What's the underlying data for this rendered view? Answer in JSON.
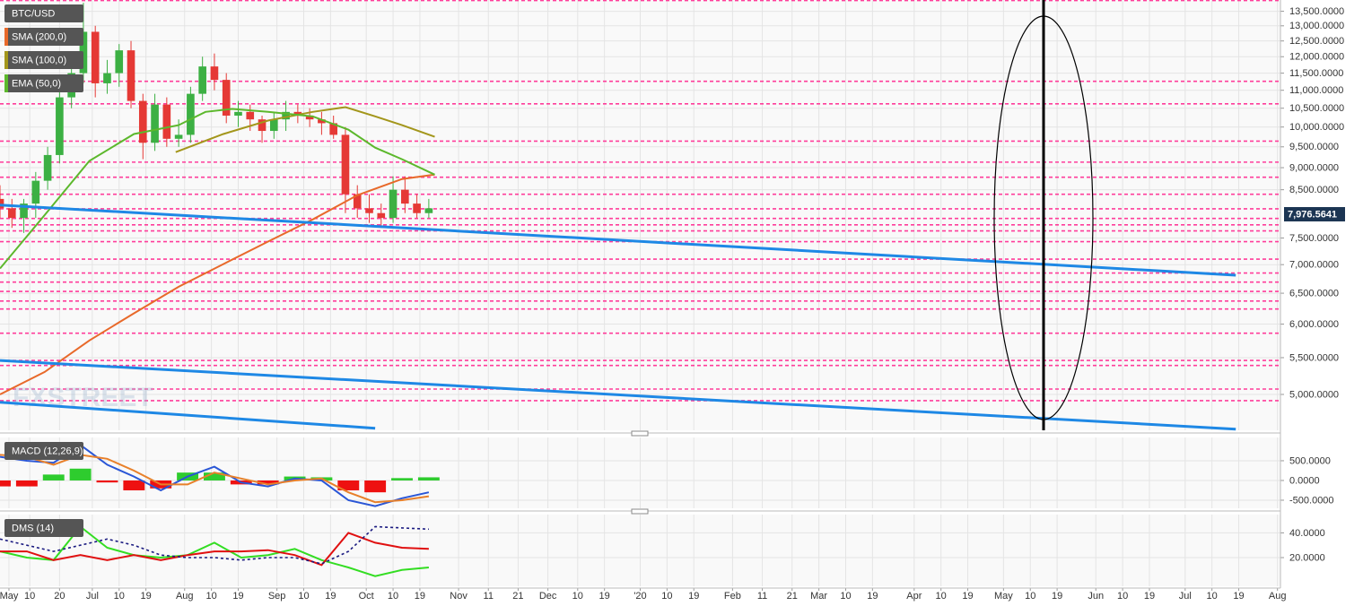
{
  "chart_data": [
    {
      "type": "candlestick",
      "title": "BTC/USD",
      "watermark": "FXSTREET",
      "log_scale": true,
      "grid": true,
      "up_color": "#3cb043",
      "down_color": "#e53935",
      "x": [
        150,
        154,
        158,
        162,
        166,
        170,
        174,
        178,
        182,
        186,
        190,
        194,
        198,
        202,
        206,
        210,
        214,
        218,
        222,
        226,
        230,
        234,
        238,
        242,
        246,
        250,
        254,
        258,
        262,
        266,
        270,
        274,
        278,
        282,
        286,
        290,
        294
      ],
      "open": [
        8300,
        8100,
        7900,
        8200,
        8700,
        9300,
        10800,
        11500,
        12800,
        11200,
        11500,
        12200,
        10700,
        9600,
        10600,
        9700,
        9800,
        10900,
        11700,
        11300,
        10300,
        10400,
        10200,
        9900,
        10200,
        10400,
        10300,
        10200,
        10100,
        9800,
        8400,
        8100,
        8000,
        7900,
        8500,
        8200,
        8000
      ],
      "high": [
        8600,
        8300,
        8300,
        8900,
        9500,
        11200,
        12000,
        13800,
        13000,
        11900,
        12400,
        12500,
        10900,
        10900,
        10800,
        10200,
        11100,
        12000,
        12100,
        11500,
        10700,
        10600,
        10300,
        10400,
        10700,
        10600,
        10500,
        10400,
        10300,
        10000,
        8600,
        8400,
        8200,
        8800,
        8800,
        8400,
        8300
      ],
      "low": [
        7900,
        7700,
        7600,
        7900,
        8500,
        9100,
        10500,
        11200,
        10800,
        10900,
        11100,
        10500,
        9200,
        9400,
        9500,
        9500,
        9600,
        10700,
        11000,
        10100,
        10000,
        9900,
        9600,
        9700,
        9900,
        10100,
        10000,
        9800,
        9700,
        8000,
        7900,
        7800,
        7700,
        7800,
        8000,
        7900,
        7900
      ],
      "close": [
        8100,
        7900,
        8200,
        8700,
        9300,
        10800,
        11500,
        12800,
        11200,
        11500,
        12200,
        10700,
        9600,
        10600,
        9700,
        9800,
        10900,
        11700,
        11300,
        10300,
        10400,
        10200,
        9900,
        10200,
        10400,
        10300,
        10200,
        10100,
        9800,
        8400,
        8100,
        8000,
        7900,
        8500,
        8200,
        8000,
        8100
      ],
      "series": [
        {
          "name": "SMA (200,0)",
          "color": "#e8692a",
          "x": [
            150,
            165,
            180,
            195,
            210,
            225,
            240,
            255,
            270,
            285,
            296
          ],
          "values": [
            5000,
            5300,
            5750,
            6170,
            6610,
            7010,
            7430,
            7870,
            8380,
            8740,
            8840
          ]
        },
        {
          "name": "SMA (100,0)",
          "color": "#a3961b",
          "x": [
            209,
            225,
            240,
            255,
            266,
            276,
            285,
            296
          ],
          "values": [
            9370,
            9820,
            10170,
            10400,
            10530,
            10280,
            10050,
            9750
          ]
        },
        {
          "name": "EMA (50,0)",
          "color": "#5cb82c",
          "x": [
            150,
            165,
            180,
            195,
            210,
            219,
            228,
            240,
            255,
            267,
            276,
            285,
            296
          ],
          "values": [
            6930,
            7960,
            9160,
            9820,
            10050,
            10400,
            10480,
            10400,
            10280,
            9930,
            9480,
            9200,
            8840
          ]
        }
      ],
      "trendlines": {
        "color": "#1e88e5",
        "lines": [
          {
            "x": [
              150,
              565
            ],
            "values": [
              8170,
              6810
            ]
          },
          {
            "x": [
              150,
              565
            ],
            "values": [
              5460,
              4570
            ]
          },
          {
            "x": [
              150,
              276
            ],
            "values": [
              4900,
              4580
            ]
          }
        ]
      },
      "levels": {
        "color": "#ff3d9a",
        "values": [
          13880,
          11260,
          10620,
          9640,
          9130,
          8780,
          8400,
          8090,
          7890,
          7760,
          7640,
          7430,
          7100,
          6850,
          6690,
          6530,
          6370,
          6240,
          5860,
          5460,
          5390,
          5070,
          4920
        ]
      },
      "last_price": {
        "value": 7976.5641,
        "label": "7,976.5641"
      },
      "ylim": [
        4556,
        13900
      ],
      "yticks": [
        {
          "value": 5000,
          "label": "5,000.0000"
        },
        {
          "value": 5500,
          "label": "5,500.0000"
        },
        {
          "value": 6000,
          "label": "6,000.0000"
        },
        {
          "value": 6500,
          "label": "6,500.0000"
        },
        {
          "value": 7000,
          "label": "7,000.0000"
        },
        {
          "value": 7500,
          "label": "7,500.0000"
        },
        {
          "value": 8500,
          "label": "8,500.0000"
        },
        {
          "value": 9000,
          "label": "9,000.0000"
        },
        {
          "value": 9500,
          "label": "9,500.0000"
        },
        {
          "value": 10000,
          "label": "10,000.0000"
        },
        {
          "value": 10500,
          "label": "10,500.0000"
        },
        {
          "value": 11000,
          "label": "11,000.0000"
        },
        {
          "value": 11500,
          "label": "11,500.0000"
        },
        {
          "value": 12000,
          "label": "12,000.0000"
        },
        {
          "value": 12500,
          "label": "12,500.0000"
        },
        {
          "value": 13000,
          "label": "13,000.0000"
        },
        {
          "value": 13500,
          "label": "13,500.0000"
        }
      ],
      "xlim": [
        150,
        580
      ],
      "xticks": [
        {
          "value": 153,
          "label": "May"
        },
        {
          "value": 160,
          "label": "10"
        },
        {
          "value": 170,
          "label": "20"
        },
        {
          "value": 181,
          "label": "Jul"
        },
        {
          "value": 190,
          "label": "10"
        },
        {
          "value": 199,
          "label": "19"
        },
        {
          "value": 212,
          "label": "Aug"
        },
        {
          "value": 221,
          "label": "10"
        },
        {
          "value": 230,
          "label": "19"
        },
        {
          "value": 243,
          "label": "Sep"
        },
        {
          "value": 252,
          "label": "10"
        },
        {
          "value": 261,
          "label": "19"
        },
        {
          "value": 273,
          "label": "Oct"
        },
        {
          "value": 282,
          "label": "10"
        },
        {
          "value": 291,
          "label": "19"
        },
        {
          "value": 304,
          "label": "Nov"
        },
        {
          "value": 314,
          "label": "11"
        },
        {
          "value": 324,
          "label": "21"
        },
        {
          "value": 334,
          "label": "Dec"
        },
        {
          "value": 344,
          "label": "10"
        },
        {
          "value": 353,
          "label": "19"
        },
        {
          "value": 365,
          "label": "'20"
        },
        {
          "value": 374,
          "label": "10"
        },
        {
          "value": 383,
          "label": "19"
        },
        {
          "value": 396,
          "label": "Feb"
        },
        {
          "value": 406,
          "label": "11"
        },
        {
          "value": 416,
          "label": "21"
        },
        {
          "value": 425,
          "label": "Mar"
        },
        {
          "value": 434,
          "label": "10"
        },
        {
          "value": 443,
          "label": "19"
        },
        {
          "value": 457,
          "label": "Apr"
        },
        {
          "value": 466,
          "label": "10"
        },
        {
          "value": 475,
          "label": "19"
        },
        {
          "value": 487,
          "label": "May"
        },
        {
          "value": 496,
          "label": "10"
        },
        {
          "value": 505,
          "label": "19"
        },
        {
          "value": 518,
          "label": "Jun"
        },
        {
          "value": 527,
          "label": "10"
        },
        {
          "value": 536,
          "label": "19"
        },
        {
          "value": 548,
          "label": "Jul"
        },
        {
          "value": 557,
          "label": "10"
        },
        {
          "value": 566,
          "label": "19"
        },
        {
          "value": 579,
          "label": "Aug"
        }
      ]
    },
    {
      "type": "line",
      "title": "MACD (12,26,9)",
      "grid": true,
      "x": [
        150,
        159,
        168,
        177,
        186,
        195,
        204,
        213,
        222,
        231,
        240,
        249,
        258,
        267,
        276,
        285,
        294
      ],
      "histogram": {
        "up_color": "#2ecc2e",
        "down_color": "#ee1111",
        "values": [
          -150,
          -150,
          150,
          300,
          -50,
          -250,
          -200,
          200,
          200,
          -100,
          -100,
          100,
          80,
          -250,
          -300,
          60,
          80
        ]
      },
      "series": [
        {
          "color": "#2a56d6",
          "values": [
            600,
            500,
            450,
            900,
            400,
            100,
            -250,
            100,
            350,
            -50,
            -150,
            50,
            0,
            -500,
            -650,
            -450,
            -300
          ]
        },
        {
          "color": "#e8802a",
          "values": [
            650,
            600,
            400,
            650,
            550,
            250,
            -100,
            -100,
            200,
            50,
            -100,
            0,
            50,
            -300,
            -550,
            -500,
            -400
          ]
        }
      ],
      "ylim": [
        -705,
        1090
      ],
      "yticks": [
        {
          "value": 500,
          "label": "500.0000"
        },
        {
          "value": 0,
          "label": "0.0000"
        },
        {
          "value": -500,
          "label": "-500.0000"
        }
      ]
    },
    {
      "type": "line",
      "title": "DMS (14)",
      "grid": true,
      "x": [
        150,
        159,
        168,
        177,
        186,
        195,
        204,
        213,
        222,
        231,
        240,
        249,
        258,
        267,
        276,
        285,
        294
      ],
      "series": [
        {
          "color": "#33dd22",
          "values": [
            25,
            20,
            18,
            45,
            28,
            22,
            20,
            22,
            32,
            20,
            22,
            27,
            18,
            12,
            5,
            10,
            12
          ]
        },
        {
          "color": "#e01010",
          "values": [
            25,
            25,
            18,
            22,
            18,
            22,
            18,
            22,
            25,
            25,
            26,
            22,
            14,
            40,
            32,
            28,
            27
          ]
        },
        {
          "color": "#1a1a80",
          "dash": true,
          "values": [
            35,
            30,
            25,
            30,
            35,
            30,
            22,
            20,
            20,
            18,
            20,
            20,
            15,
            25,
            45,
            44,
            43
          ]
        }
      ],
      "ylim": [
        -3.2,
        54.8
      ],
      "yticks": [
        {
          "value": 40,
          "label": "40.0000"
        },
        {
          "value": 20,
          "label": "20.0000"
        }
      ]
    }
  ]
}
